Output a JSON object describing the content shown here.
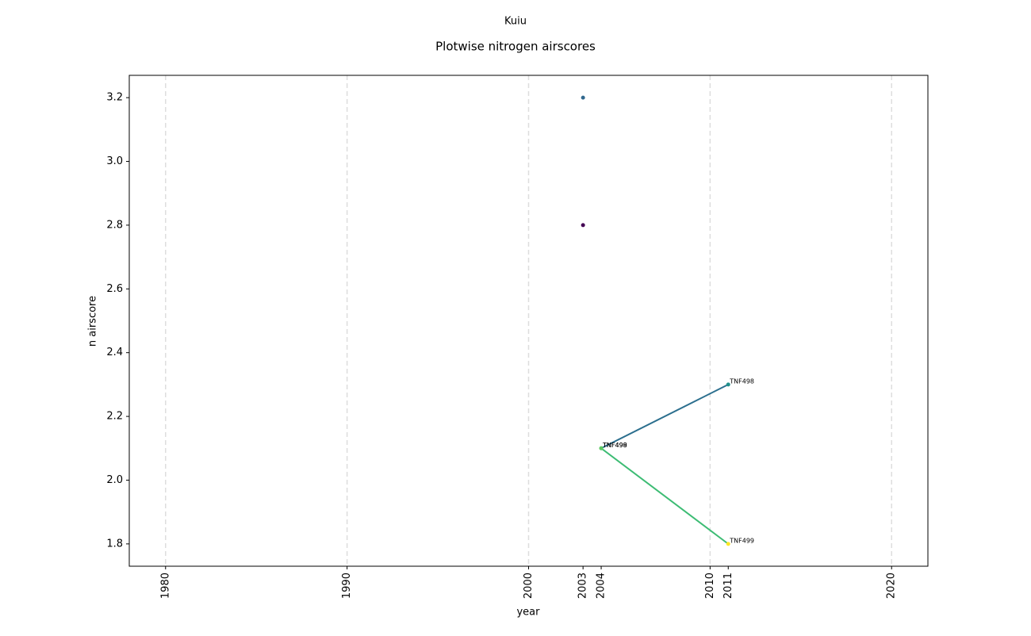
{
  "chart_data": {
    "type": "line",
    "suptitle": "Kuiu",
    "title": "Plotwise nitrogen airscores",
    "x_label": "year",
    "y_label": "n airscore",
    "xlim": [
      1978,
      2022
    ],
    "ylim": [
      1.73,
      3.27
    ],
    "xticks": [
      1980,
      1990,
      2000,
      2003,
      2004,
      2010,
      2011,
      2020
    ],
    "yticks": [
      1.8,
      {
        "value": 2,
        "label": "2.0"
      },
      2.2,
      2.4,
      2.6,
      2.8,
      {
        "value": 3,
        "label": "3.0"
      },
      3.2
    ],
    "vlines": [
      1980,
      1990,
      2000,
      2010,
      2020
    ],
    "points": [
      {
        "x": 2003,
        "y": 3.2,
        "color": "#31688e"
      },
      {
        "x": 2003,
        "y": 2.8,
        "color": "#440154"
      }
    ],
    "series": [
      {
        "name": "TNF498",
        "color": "#2c6f8e",
        "x": [
          2004,
          2011
        ],
        "values": [
          2.1,
          2.3
        ],
        "point_colors": [
          "#5ec962",
          "#21918c"
        ]
      },
      {
        "name": "TNF499",
        "color": "#3dbc74",
        "x": [
          2004,
          2011
        ],
        "values": [
          2.1,
          1.8
        ],
        "point_colors": [
          "#5ec962",
          "#fde725"
        ]
      }
    ]
  }
}
